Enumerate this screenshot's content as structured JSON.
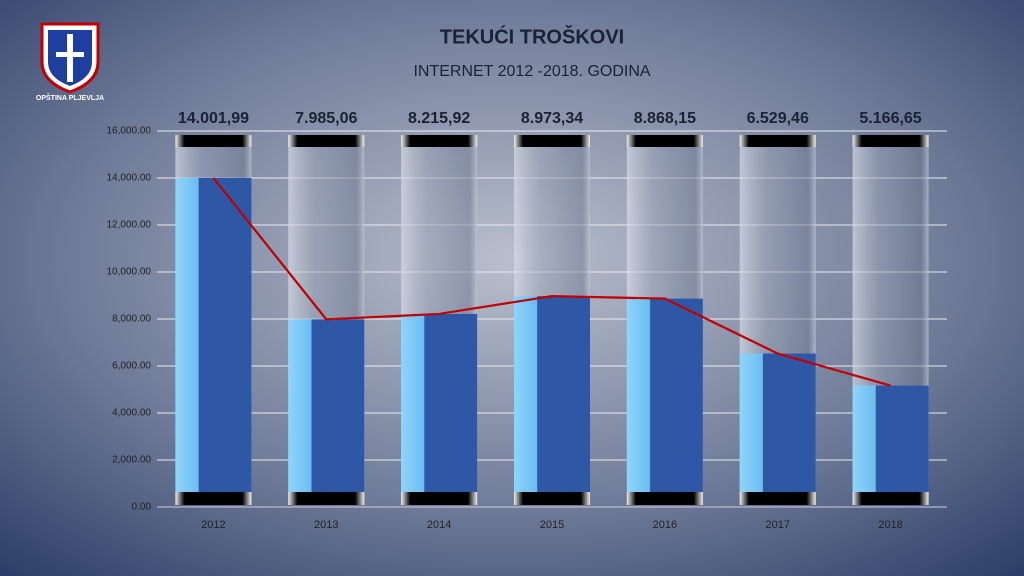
{
  "header": {
    "logo_text": "OPŠTINA PLJEVLJA"
  },
  "chart_data": {
    "type": "bar",
    "title": "TEKUĆI TROŠKOVI",
    "subtitle": "INTERNET 2012 -2018. GODINA",
    "categories": [
      "2012",
      "2013",
      "2014",
      "2015",
      "2016",
      "2017",
      "2018"
    ],
    "values": [
      14001.99,
      7985.06,
      8215.92,
      8973.34,
      8868.15,
      6529.46,
      5166.65
    ],
    "value_labels": [
      "14.001,99",
      "7.985,06",
      "8.215,92",
      "8.973,34",
      "8.868,15",
      "6.529,46",
      "5.166,65"
    ],
    "color": "#2e58a6",
    "line_color": "#c00000",
    "ylim": [
      0,
      16000
    ],
    "yticks": [
      {
        "value": 0,
        "label": "0.00"
      },
      {
        "value": 2000,
        "label": "2,000.00"
      },
      {
        "value": 4000,
        "label": "4,000.00"
      },
      {
        "value": 6000,
        "label": "6,000.00"
      },
      {
        "value": 8000,
        "label": "8,000.00"
      },
      {
        "value": 10000,
        "label": "10,000.00"
      },
      {
        "value": 12000,
        "label": "12,000.00"
      },
      {
        "value": 14000,
        "label": "14,000.00"
      },
      {
        "value": 16000,
        "label": "16,000.00"
      }
    ],
    "grid": true
  }
}
